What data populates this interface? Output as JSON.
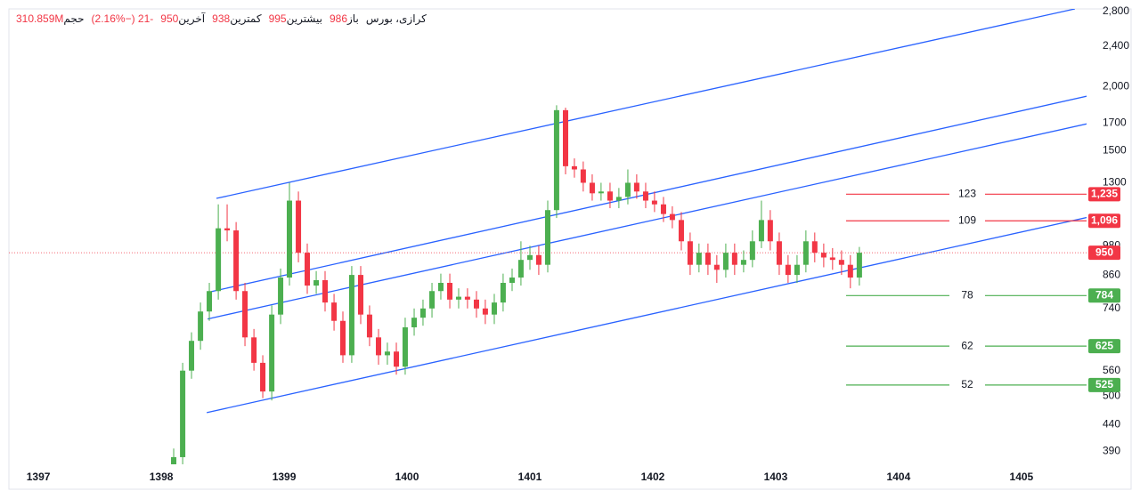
{
  "chart_data": {
    "type": "candlestick",
    "header": {
      "symbol": "کرازی، بورس",
      "items": [
        {
          "label": "باز",
          "value": "986"
        },
        {
          "label": "بیشترین",
          "value": "995"
        },
        {
          "label": "کمترین",
          "value": "938"
        },
        {
          "label": "آخرین",
          "value": "950"
        },
        {
          "label": "",
          "value": "-21 (−2.16%)"
        },
        {
          "label": "حجم",
          "value": "310.859M"
        }
      ]
    },
    "log_scale": true,
    "up_color": "#4caf50",
    "down_color": "#f23645",
    "xlim": [
      1396.76,
      1405.53
    ],
    "xticks": [
      1397,
      1398,
      1399,
      1400,
      1401,
      1402,
      1403,
      1404,
      1405
    ],
    "ylim": [
      368,
      2834
    ],
    "yticks": [
      390,
      440,
      500,
      560,
      740,
      860,
      980,
      1300,
      1500,
      1700,
      {
        "value": 2000,
        "label": "2,000"
      },
      {
        "value": 2400,
        "label": "2,400"
      },
      {
        "value": 2800,
        "label": "2,800"
      }
    ],
    "x": [
      1398.101,
      1398.174,
      1398.246,
      1398.319,
      1398.391,
      1398.464,
      1398.536,
      1398.609,
      1398.681,
      1398.754,
      1398.826,
      1398.899,
      1398.971,
      1399.043,
      1399.116,
      1399.188,
      1399.261,
      1399.333,
      1399.406,
      1399.478,
      1399.55,
      1399.623,
      1399.695,
      1399.768,
      1399.84,
      1399.913,
      1399.985,
      1400.058,
      1400.13,
      1400.203,
      1400.275,
      1400.348,
      1400.42,
      1400.492,
      1400.565,
      1400.637,
      1400.71,
      1400.782,
      1400.855,
      1400.927,
      1401.0,
      1401.072,
      1401.145,
      1401.217,
      1401.29,
      1401.362,
      1401.434,
      1401.507,
      1401.579,
      1401.652,
      1401.724,
      1401.797,
      1401.869,
      1401.942,
      1402.014,
      1402.087,
      1402.159,
      1402.232,
      1402.304,
      1402.376,
      1402.449,
      1402.521,
      1402.594,
      1402.666,
      1402.739,
      1402.811,
      1402.884,
      1402.956,
      1403.029,
      1403.101,
      1403.174,
      1403.246,
      1403.318,
      1403.391,
      1403.463,
      1403.536,
      1403.608,
      1403.681
    ],
    "open": [
      360,
      380,
      560,
      640,
      730,
      800,
      1060,
      1050,
      800,
      650,
      580,
      510,
      720,
      850,
      1200,
      950,
      820,
      840,
      760,
      700,
      600,
      860,
      720,
      650,
      600,
      610,
      570,
      680,
      710,
      740,
      800,
      830,
      770,
      780,
      770,
      740,
      720,
      760,
      830,
      850,
      920,
      940,
      900,
      1150,
      1800,
      1400,
      1380,
      1300,
      1240,
      1250,
      1200,
      1220,
      1300,
      1250,
      1200,
      1180,
      1130,
      1100,
      1000,
      900,
      950,
      900,
      880,
      950,
      900,
      920,
      1000,
      1100,
      1000,
      900,
      860,
      900,
      1000,
      950,
      930,
      920,
      900,
      850
    ],
    "high": [
      395,
      580,
      665,
      760,
      830,
      1180,
      1180,
      1090,
      830,
      675,
      600,
      750,
      885,
      1300,
      1250,
      990,
      875,
      875,
      790,
      730,
      895,
      895,
      750,
      675,
      635,
      635,
      710,
      740,
      770,
      830,
      865,
      865,
      810,
      810,
      800,
      770,
      790,
      865,
      885,
      1000,
      980,
      980,
      1200,
      1840,
      1820,
      1450,
      1430,
      1350,
      1300,
      1300,
      1270,
      1380,
      1350,
      1300,
      1250,
      1220,
      1170,
      1140,
      1040,
      990,
      990,
      940,
      990,
      990,
      960,
      1050,
      1200,
      1150,
      1040,
      940,
      940,
      1050,
      1040,
      990,
      970,
      960,
      940,
      975
    ],
    "low": [
      345,
      365,
      540,
      615,
      700,
      770,
      1000,
      770,
      625,
      560,
      495,
      490,
      690,
      820,
      910,
      790,
      790,
      730,
      670,
      580,
      580,
      690,
      625,
      575,
      575,
      550,
      550,
      655,
      685,
      710,
      770,
      740,
      740,
      740,
      710,
      690,
      690,
      730,
      800,
      820,
      880,
      860,
      870,
      1110,
      1350,
      1330,
      1250,
      1200,
      1200,
      1160,
      1160,
      1180,
      1210,
      1160,
      1140,
      1090,
      1060,
      960,
      860,
      870,
      860,
      830,
      850,
      860,
      870,
      890,
      970,
      960,
      860,
      830,
      830,
      870,
      910,
      890,
      880,
      860,
      810,
      820
    ],
    "close": [
      380,
      560,
      640,
      730,
      800,
      1060,
      1050,
      800,
      650,
      580,
      510,
      720,
      850,
      1200,
      950,
      820,
      840,
      760,
      700,
      600,
      860,
      720,
      650,
      600,
      610,
      570,
      680,
      710,
      740,
      800,
      830,
      770,
      780,
      770,
      740,
      720,
      760,
      830,
      850,
      920,
      940,
      900,
      1150,
      1800,
      1400,
      1380,
      1300,
      1240,
      1250,
      1200,
      1220,
      1300,
      1250,
      1200,
      1180,
      1130,
      1100,
      1000,
      900,
      950,
      900,
      880,
      950,
      900,
      920,
      1000,
      1100,
      1000,
      900,
      860,
      900,
      1000,
      950,
      930,
      920,
      900,
      850,
      950
    ],
    "trendlines": [
      {
        "color": "#2962ff",
        "x": [
          1398.449,
          1405.435
        ],
        "y": [
          1212,
          2834
        ]
      },
      {
        "color": "#2962ff",
        "x": [
          1398.406,
          1405.543
        ],
        "y": [
          798,
          1919
        ]
      },
      {
        "color": "#2962ff",
        "x": [
          1398.377,
          1405.543
        ],
        "y": [
          706,
          1695
        ]
      },
      {
        "color": "#2962ff",
        "x": [
          1398.37,
          1405.543
        ],
        "y": [
          464,
          1114
        ]
      }
    ],
    "levels": [
      {
        "value": 1235,
        "value_label": "1,235",
        "text": "123",
        "color": "#f23645"
      },
      {
        "value": 1096,
        "value_label": "1,096",
        "text": "109",
        "color": "#f23645"
      },
      {
        "value": 784,
        "value_label": "784",
        "text": "78",
        "color": "#4caf50"
      },
      {
        "value": 625,
        "value_label": "625",
        "text": "62",
        "color": "#4caf50"
      },
      {
        "value": 525,
        "value_label": "525",
        "text": "52",
        "color": "#4caf50"
      }
    ],
    "last_price": {
      "value": 950,
      "color": "#f23645"
    }
  }
}
